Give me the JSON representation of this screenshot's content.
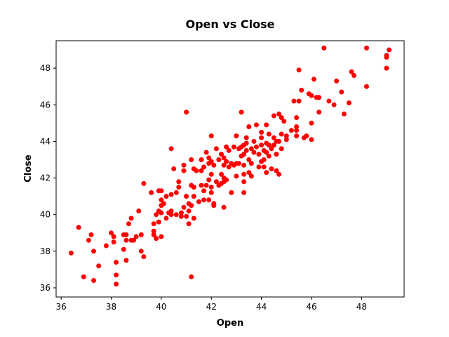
{
  "chart_data": {
    "type": "scatter",
    "title": "Open vs Close",
    "xlabel": "Open",
    "ylabel": "Close",
    "xlim": [
      35.8,
      49.7
    ],
    "ylim": [
      35.5,
      49.5
    ],
    "xticks": [
      36,
      38,
      40,
      42,
      44,
      46,
      48
    ],
    "yticks": [
      36,
      38,
      40,
      42,
      44,
      46,
      48
    ],
    "grid": false,
    "marker_color": "#ff0000",
    "series": [
      {
        "points": [
          [
            36.4,
            37.9
          ],
          [
            36.7,
            39.3
          ],
          [
            36.9,
            36.6
          ],
          [
            37.1,
            38.6
          ],
          [
            37.2,
            38.9
          ],
          [
            37.3,
            38.0
          ],
          [
            37.3,
            36.4
          ],
          [
            37.5,
            37.2
          ],
          [
            37.8,
            38.3
          ],
          [
            38.0,
            39.0
          ],
          [
            38.1,
            38.8
          ],
          [
            38.1,
            38.5
          ],
          [
            38.2,
            37.4
          ],
          [
            38.2,
            36.7
          ],
          [
            38.2,
            36.2
          ],
          [
            38.5,
            38.9
          ],
          [
            38.5,
            38.1
          ],
          [
            38.6,
            38.9
          ],
          [
            38.6,
            38.6
          ],
          [
            38.6,
            37.5
          ],
          [
            38.7,
            39.5
          ],
          [
            38.8,
            39.8
          ],
          [
            38.8,
            38.6
          ],
          [
            38.9,
            38.6
          ],
          [
            39.0,
            38.8
          ],
          [
            39.1,
            40.2
          ],
          [
            39.2,
            38.9
          ],
          [
            39.2,
            38.0
          ],
          [
            39.3,
            41.7
          ],
          [
            39.3,
            37.7
          ],
          [
            39.6,
            41.2
          ],
          [
            39.7,
            39.5
          ],
          [
            39.7,
            39.1
          ],
          [
            39.7,
            38.9
          ],
          [
            39.8,
            40.0
          ],
          [
            39.8,
            38.7
          ],
          [
            39.9,
            41.3
          ],
          [
            39.9,
            40.2
          ],
          [
            39.9,
            39.6
          ],
          [
            40.0,
            41.3
          ],
          [
            40.0,
            40.8
          ],
          [
            40.0,
            40.5
          ],
          [
            40.0,
            40.1
          ],
          [
            40.0,
            38.8
          ],
          [
            40.1,
            40.6
          ],
          [
            40.2,
            41.0
          ],
          [
            40.2,
            39.8
          ],
          [
            40.3,
            40.1
          ],
          [
            40.4,
            43.6
          ],
          [
            40.4,
            41.1
          ],
          [
            40.4,
            40.0
          ],
          [
            40.4,
            40.2
          ],
          [
            40.5,
            42.5
          ],
          [
            40.6,
            41.2
          ],
          [
            40.6,
            40.0
          ],
          [
            40.7,
            41.8
          ],
          [
            40.7,
            41.5
          ],
          [
            40.8,
            40.1
          ],
          [
            40.8,
            39.9
          ],
          [
            40.9,
            42.7
          ],
          [
            40.9,
            42.4
          ],
          [
            40.9,
            40.4
          ],
          [
            41.0,
            45.6
          ],
          [
            41.0,
            41.0
          ],
          [
            41.0,
            39.9
          ],
          [
            41.1,
            40.6
          ],
          [
            41.1,
            40.2
          ],
          [
            41.1,
            39.5
          ],
          [
            41.2,
            43.0
          ],
          [
            41.2,
            41.6
          ],
          [
            41.2,
            40.5
          ],
          [
            41.2,
            36.6
          ],
          [
            41.3,
            42.5
          ],
          [
            41.3,
            41.5
          ],
          [
            41.3,
            41.0
          ],
          [
            41.3,
            39.8
          ],
          [
            41.4,
            42.4
          ],
          [
            41.5,
            40.7
          ],
          [
            41.6,
            43.0
          ],
          [
            41.6,
            42.4
          ],
          [
            41.6,
            41.6
          ],
          [
            41.7,
            42.6
          ],
          [
            41.7,
            41.3
          ],
          [
            41.7,
            40.8
          ],
          [
            41.8,
            43.4
          ],
          [
            41.8,
            41.6
          ],
          [
            41.9,
            43.1
          ],
          [
            41.9,
            42.8
          ],
          [
            41.9,
            41.9
          ],
          [
            41.9,
            40.8
          ],
          [
            42.0,
            44.3
          ],
          [
            42.0,
            42.9
          ],
          [
            42.0,
            42.2
          ],
          [
            42.0,
            41.5
          ],
          [
            42.0,
            41.2
          ],
          [
            42.1,
            42.7
          ],
          [
            42.1,
            40.6
          ],
          [
            42.1,
            40.5
          ],
          [
            42.2,
            43.6
          ],
          [
            42.2,
            41.8
          ],
          [
            42.3,
            43.0
          ],
          [
            42.3,
            41.6
          ],
          [
            42.4,
            43.3
          ],
          [
            42.4,
            42.2
          ],
          [
            42.4,
            41.7
          ],
          [
            42.5,
            43.1
          ],
          [
            42.5,
            42.7
          ],
          [
            42.5,
            42.0
          ],
          [
            42.5,
            41.8
          ],
          [
            42.5,
            40.4
          ],
          [
            42.6,
            43.7
          ],
          [
            42.6,
            42.9
          ],
          [
            42.6,
            41.9
          ],
          [
            42.7,
            43.5
          ],
          [
            42.7,
            42.6
          ],
          [
            42.8,
            42.8
          ],
          [
            42.8,
            41.2
          ],
          [
            42.9,
            43.7
          ],
          [
            42.9,
            42.7
          ],
          [
            43.0,
            44.3
          ],
          [
            43.0,
            42.8
          ],
          [
            43.0,
            42.1
          ],
          [
            43.1,
            43.6
          ],
          [
            43.1,
            42.8
          ],
          [
            43.2,
            45.6
          ],
          [
            43.2,
            43.7
          ],
          [
            43.2,
            43.2
          ],
          [
            43.3,
            43.8
          ],
          [
            43.3,
            43.3
          ],
          [
            43.3,
            42.7
          ],
          [
            43.3,
            42.2
          ],
          [
            43.3,
            41.8
          ],
          [
            43.3,
            41.2
          ],
          [
            43.4,
            44.2
          ],
          [
            43.4,
            43.9
          ],
          [
            43.4,
            43.5
          ],
          [
            43.5,
            44.8
          ],
          [
            43.5,
            43.0
          ],
          [
            43.5,
            42.3
          ],
          [
            43.6,
            43.6
          ],
          [
            43.6,
            42.8
          ],
          [
            43.6,
            42.1
          ],
          [
            43.7,
            44.0
          ],
          [
            43.7,
            43.4
          ],
          [
            43.8,
            44.9
          ],
          [
            43.8,
            43.7
          ],
          [
            43.9,
            43.3
          ],
          [
            43.9,
            42.6
          ],
          [
            44.0,
            44.5
          ],
          [
            44.0,
            44.2
          ],
          [
            44.0,
            43.8
          ],
          [
            44.0,
            42.9
          ],
          [
            44.1,
            43.5
          ],
          [
            44.1,
            43.0
          ],
          [
            44.1,
            42.6
          ],
          [
            44.2,
            44.9
          ],
          [
            44.2,
            43.9
          ],
          [
            44.2,
            43.4
          ],
          [
            44.2,
            42.3
          ],
          [
            44.3,
            44.4
          ],
          [
            44.3,
            43.8
          ],
          [
            44.3,
            43.2
          ],
          [
            44.4,
            43.6
          ],
          [
            44.4,
            42.5
          ],
          [
            44.5,
            45.4
          ],
          [
            44.5,
            44.2
          ],
          [
            44.5,
            43.8
          ],
          [
            44.6,
            44.0
          ],
          [
            44.6,
            43.3
          ],
          [
            44.6,
            42.4
          ],
          [
            44.7,
            45.5
          ],
          [
            44.7,
            44.0
          ],
          [
            44.7,
            42.2
          ],
          [
            44.8,
            45.3
          ],
          [
            44.8,
            44.4
          ],
          [
            44.8,
            43.6
          ],
          [
            44.9,
            45.1
          ],
          [
            45.0,
            44.3
          ],
          [
            45.0,
            44.1
          ],
          [
            45.2,
            44.6
          ],
          [
            45.3,
            46.2
          ],
          [
            45.4,
            45.3
          ],
          [
            45.4,
            44.8
          ],
          [
            45.4,
            44.6
          ],
          [
            45.4,
            44.3
          ],
          [
            45.5,
            47.9
          ],
          [
            45.5,
            46.2
          ],
          [
            45.6,
            46.8
          ],
          [
            45.7,
            44.2
          ],
          [
            45.8,
            44.3
          ],
          [
            45.9,
            46.6
          ],
          [
            46.0,
            46.5
          ],
          [
            46.0,
            45.0
          ],
          [
            46.0,
            44.1
          ],
          [
            46.1,
            47.4
          ],
          [
            46.2,
            46.4
          ],
          [
            46.3,
            46.4
          ],
          [
            46.3,
            45.6
          ],
          [
            46.5,
            49.1
          ],
          [
            46.7,
            46.2
          ],
          [
            46.9,
            46.0
          ],
          [
            47.0,
            47.3
          ],
          [
            47.2,
            46.7
          ],
          [
            47.3,
            45.5
          ],
          [
            47.5,
            46.1
          ],
          [
            47.6,
            47.8
          ],
          [
            47.7,
            47.6
          ],
          [
            48.2,
            49.1
          ],
          [
            48.2,
            47.0
          ],
          [
            49.0,
            48.6
          ],
          [
            49.0,
            48.0
          ],
          [
            49.0,
            48.7
          ],
          [
            49.1,
            49.0
          ]
        ]
      }
    ]
  }
}
